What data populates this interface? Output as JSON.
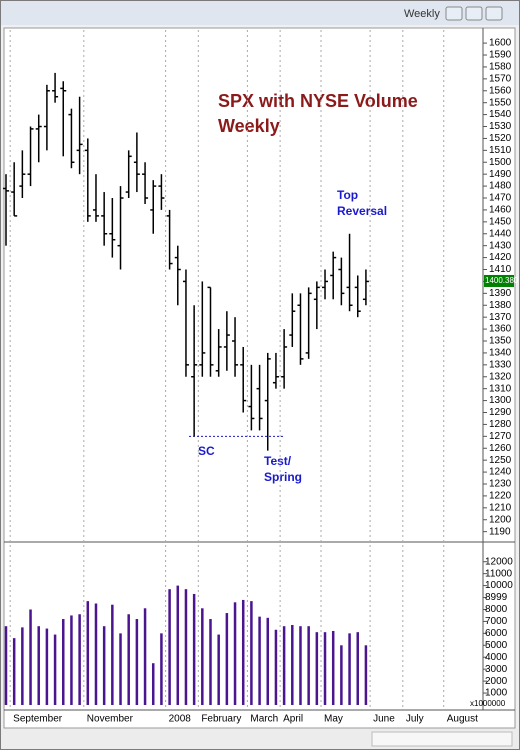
{
  "window": {
    "title": "Weekly"
  },
  "chart_data": [
    {
      "type": "ohlc",
      "title_lines": [
        "SPX with NYSE Volume",
        "Weekly"
      ],
      "annotations": {
        "top": [
          "Top",
          "Reversal"
        ],
        "sc": "SC",
        "spring": [
          "Test/",
          "Spring"
        ]
      },
      "sc_level": 1270,
      "last_price": {
        "value": 1400.38,
        "label": "1400.380"
      },
      "color": "#000000",
      "open": [
        1478,
        1475,
        1480,
        1490,
        1528,
        1530,
        1560,
        1562,
        1540,
        1510,
        1510,
        1460,
        1455,
        1440,
        1430,
        1475,
        1500,
        1490,
        1460,
        1480,
        1455,
        1420,
        1400,
        1320,
        1330,
        1395,
        1325,
        1345,
        1350,
        1330,
        1295,
        1310,
        1300,
        1315,
        1320,
        1355,
        1380,
        1340,
        1385,
        1395,
        1405,
        1410,
        1395,
        1395,
        1385,
        null,
        null,
        null,
        null,
        null,
        null,
        null,
        null,
        null,
        null,
        null,
        null,
        null
      ],
      "high": [
        1490,
        1500,
        1510,
        1530,
        1540,
        1565,
        1575,
        1568,
        1545,
        1555,
        1520,
        1490,
        1475,
        1470,
        1480,
        1510,
        1525,
        1500,
        1485,
        1490,
        1460,
        1430,
        1410,
        1380,
        1400,
        1395,
        1360,
        1375,
        1370,
        1345,
        1330,
        1330,
        1340,
        1340,
        1360,
        1390,
        1390,
        1395,
        1400,
        1410,
        1425,
        1420,
        1440,
        1405,
        1410,
        null,
        null,
        null,
        null,
        null,
        null,
        null,
        null,
        null,
        null,
        null,
        null,
        null
      ],
      "low": [
        1430,
        1455,
        1470,
        1480,
        1500,
        1510,
        1550,
        1505,
        1495,
        1490,
        1450,
        1450,
        1430,
        1420,
        1410,
        1470,
        1475,
        1465,
        1440,
        1460,
        1410,
        1380,
        1320,
        1270,
        1320,
        1320,
        1320,
        1325,
        1320,
        1290,
        1275,
        1275,
        1258,
        1310,
        1310,
        1345,
        1330,
        1335,
        1360,
        1385,
        1385,
        1380,
        1375,
        1370,
        1380,
        null,
        null,
        null,
        null,
        null,
        null,
        null,
        null,
        null,
        null,
        null,
        null,
        null
      ],
      "close": [
        1476,
        1455,
        1490,
        1528,
        1530,
        1560,
        1555,
        1560,
        1500,
        1515,
        1455,
        1455,
        1440,
        1435,
        1470,
        1505,
        1490,
        1470,
        1480,
        1470,
        1415,
        1410,
        1330,
        1330,
        1340,
        1330,
        1345,
        1355,
        1330,
        1300,
        1285,
        1285,
        1335,
        1320,
        1345,
        1375,
        1335,
        1390,
        1395,
        1400,
        1420,
        1390,
        1380,
        1375,
        1400,
        null,
        null,
        null,
        null,
        null,
        null,
        null,
        null,
        null,
        null,
        null,
        null,
        null
      ],
      "ylim": [
        1183,
        1611
      ],
      "yticks": [
        1190,
        1200,
        1210,
        1220,
        1230,
        1240,
        1250,
        1260,
        1270,
        1280,
        1290,
        1300,
        1310,
        1320,
        1330,
        1340,
        1350,
        1360,
        1370,
        1380,
        1390,
        1400,
        1410,
        1420,
        1430,
        1440,
        1450,
        1460,
        1470,
        1480,
        1490,
        1500,
        1510,
        1520,
        1530,
        1540,
        1550,
        1560,
        1570,
        1580,
        1590,
        1600
      ]
    },
    {
      "type": "bar",
      "categories": [
        null,
        "September",
        null,
        null,
        null,
        null,
        null,
        null,
        null,
        null,
        "November",
        null,
        null,
        null,
        null,
        null,
        null,
        null,
        null,
        null,
        "2008",
        null,
        null,
        null,
        "February",
        null,
        null,
        null,
        null,
        null,
        "March",
        null,
        null,
        null,
        "April",
        null,
        null,
        null,
        null,
        "May",
        null,
        null,
        null,
        null,
        null,
        "June",
        null,
        null,
        null,
        "July",
        null,
        null,
        null,
        null,
        "August",
        null,
        null,
        null
      ],
      "color": "#4b1590",
      "values": [
        6600,
        5600,
        6500,
        8000,
        6600,
        6400,
        5900,
        7200,
        7500,
        7600,
        8700,
        8500,
        6600,
        8400,
        6000,
        7600,
        7200,
        8100,
        3500,
        6000,
        9700,
        10000,
        9700,
        9300,
        8100,
        7200,
        5900,
        7700,
        8600,
        8800,
        8700,
        7400,
        7300,
        6300,
        6600,
        6700,
        6600,
        6600,
        6100,
        6100,
        6200,
        5000,
        6000,
        6100,
        5000,
        null,
        null,
        null,
        null,
        null,
        null,
        null,
        null,
        null,
        null,
        null,
        null,
        null
      ],
      "unit_label": "x1000000",
      "ylim": [
        0,
        13400
      ],
      "yticks": [
        1000,
        2000,
        3000,
        4000,
        5000,
        6000,
        7000,
        8000,
        8999,
        10000,
        11000,
        12000
      ]
    }
  ]
}
